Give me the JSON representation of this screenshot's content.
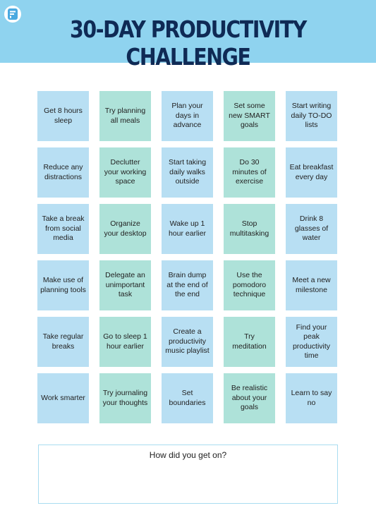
{
  "title": "30-DAY PRODUCTIVITY CHALLENGE",
  "colors": {
    "header_bg": "#8fd3ef",
    "title_text": "#0f2a55",
    "tile_blue": "#b8dff3",
    "tile_green": "#aee2d9",
    "logo_accent": "#4aa9e0"
  },
  "tiles": [
    {
      "label": "Get 8 hours sleep",
      "color": "blue"
    },
    {
      "label": "Try planning all meals",
      "color": "green"
    },
    {
      "label": "Plan your days in advance",
      "color": "blue"
    },
    {
      "label": "Set some new SMART goals",
      "color": "green"
    },
    {
      "label": "Start writing daily TO-DO lists",
      "color": "blue"
    },
    {
      "label": "Reduce any distractions",
      "color": "blue"
    },
    {
      "label": "Declutter your working space",
      "color": "green"
    },
    {
      "label": "Start taking daily walks outside",
      "color": "blue"
    },
    {
      "label": "Do 30 minutes of exercise",
      "color": "green"
    },
    {
      "label": "Eat breakfast every day",
      "color": "blue"
    },
    {
      "label": "Take a break from social media",
      "color": "blue"
    },
    {
      "label": "Organize your desktop",
      "color": "green"
    },
    {
      "label": "Wake up 1 hour earlier",
      "color": "blue"
    },
    {
      "label": "Stop multitasking",
      "color": "green"
    },
    {
      "label": "Drink 8 glasses of water",
      "color": "blue"
    },
    {
      "label": "Make use of planning tools",
      "color": "blue"
    },
    {
      "label": "Delegate an unimportant task",
      "color": "green"
    },
    {
      "label": "Brain dump at the end of the end",
      "color": "blue"
    },
    {
      "label": "Use the pomodoro technique",
      "color": "green"
    },
    {
      "label": "Meet a new milestone",
      "color": "blue"
    },
    {
      "label": "Take regular breaks",
      "color": "blue"
    },
    {
      "label": "Go to sleep 1 hour earlier",
      "color": "green"
    },
    {
      "label": "Create a productivity music playlist",
      "color": "blue"
    },
    {
      "label": "Try meditation",
      "color": "green"
    },
    {
      "label": "Find your peak productivity time",
      "color": "blue"
    },
    {
      "label": "Work smarter",
      "color": "blue"
    },
    {
      "label": "Try journaling your thoughts",
      "color": "green"
    },
    {
      "label": "Set boundaries",
      "color": "blue"
    },
    {
      "label": "Be realistic about your goals",
      "color": "green"
    },
    {
      "label": "Learn to say no",
      "color": "blue"
    }
  ],
  "reflection": {
    "question": "How did you get on?"
  },
  "logo": {
    "icon": "app-logo-icon"
  }
}
